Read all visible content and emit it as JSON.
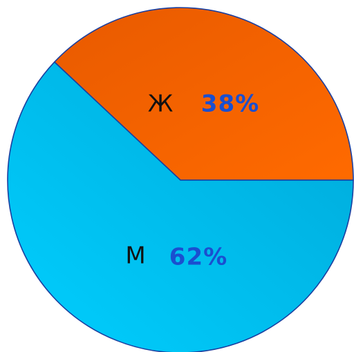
{
  "chart_data": {
    "type": "pie",
    "slices": [
      {
        "category": "Ж",
        "value": 38,
        "label": "38%",
        "color": "#e85a00",
        "color_light": "#ff6a00"
      },
      {
        "category": "М",
        "value": 62,
        "label": "62%",
        "color": "#00a8d8",
        "color_light": "#00cfff"
      }
    ],
    "start_direction": "east",
    "direction": "counterclockwise",
    "outline_color": "#1a3fa0",
    "label_color": "#111111",
    "percent_color": "#1a4fd0",
    "legend": "none"
  }
}
